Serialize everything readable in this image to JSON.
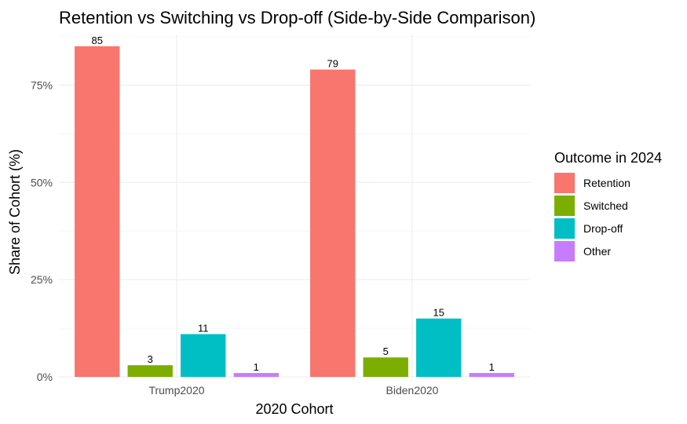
{
  "chart_data": {
    "type": "bar",
    "title": "Retention vs Switching vs Drop-off (Side-by-Side Comparison)",
    "xlabel": "2020 Cohort",
    "ylabel": "Share of Cohort (%)",
    "categories": [
      "Trump2020",
      "Biden2020"
    ],
    "series": [
      {
        "name": "Retention",
        "values": [
          85,
          79
        ],
        "color": "#F8766D"
      },
      {
        "name": "Switched",
        "values": [
          3,
          5
        ],
        "color": "#7CAE00"
      },
      {
        "name": "Drop-off",
        "values": [
          11,
          15
        ],
        "color": "#00BFC4"
      },
      {
        "name": "Other",
        "values": [
          1,
          1
        ],
        "color": "#C77CFF"
      }
    ],
    "ylim": [
      0,
      88
    ],
    "yticks": [
      0,
      25,
      50,
      75
    ],
    "ytick_labels": [
      "0%",
      "25%",
      "50%",
      "75%"
    ],
    "grid": true,
    "legend": {
      "title": "Outcome in 2024",
      "position": "right"
    }
  }
}
